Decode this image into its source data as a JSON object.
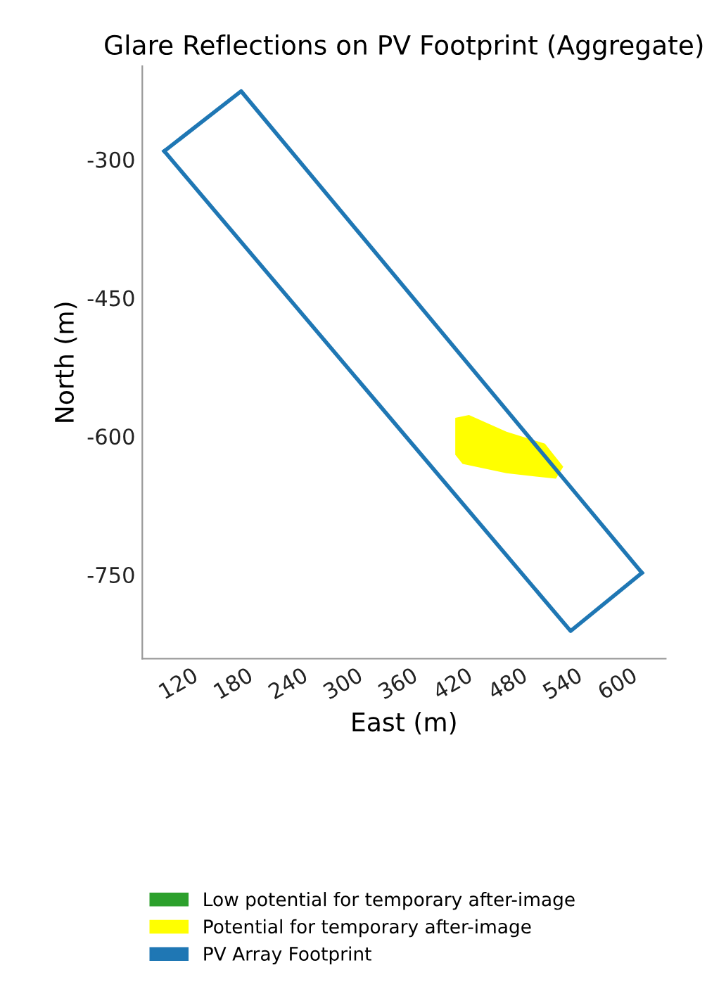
{
  "chart_data": {
    "type": "line",
    "title": "Glare Reflections on PV Footprint (Aggregate)",
    "xlabel": "East (m)",
    "ylabel": "North (m)",
    "xlim": [
      80,
      652
    ],
    "ylim": [
      -841,
      -199
    ],
    "xticks": [
      120,
      180,
      240,
      300,
      360,
      420,
      480,
      540,
      600
    ],
    "yticks": [
      -750,
      -600,
      -450,
      -300
    ],
    "grid": false,
    "legend": "bottom",
    "series": [
      {
        "name": "Low potential for temporary after-image",
        "type": "area",
        "color": "#2ca02c"
      },
      {
        "name": "Potential for temporary after-image",
        "type": "area",
        "color": "#ffff00",
        "x": [
          422,
          437,
          478,
          520,
          540,
          532,
          478,
          430,
          422
        ],
        "values": [
          -580,
          -577,
          -595,
          -608,
          -633,
          -646,
          -640,
          -630,
          -620
        ]
      },
      {
        "name": "PV Array Footprint",
        "color": "#1f77b4",
        "x": [
          104,
          188,
          626
        ],
        "values": [
          -291,
          -226,
          -748
        ]
      },
      {
        "color": "#1f77b4",
        "x": [
          104,
          548,
          626
        ],
        "values": [
          -291,
          -811,
          -748
        ]
      }
    ]
  }
}
